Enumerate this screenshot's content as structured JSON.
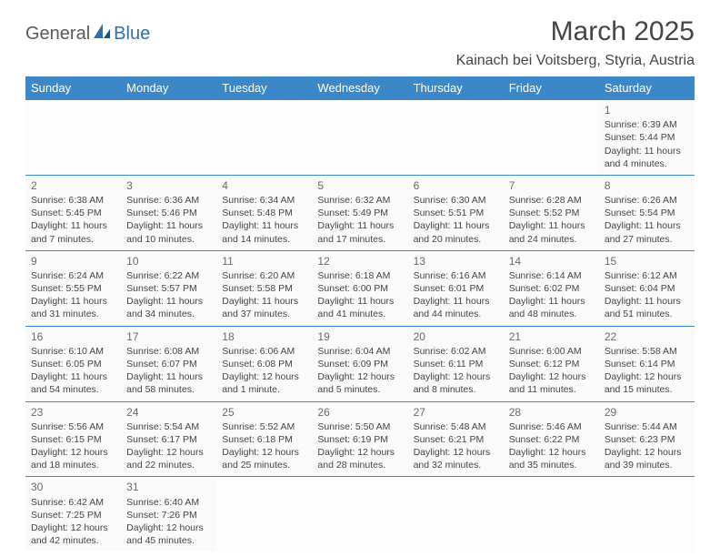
{
  "logo": {
    "text_general": "General",
    "text_blue": "Blue"
  },
  "title": "March 2025",
  "location": "Kainach bei Voitsberg, Styria, Austria",
  "colors": {
    "header_bg": "#3b87c8",
    "header_text": "#ffffff",
    "border": "#3b87c8",
    "body_text": "#454545",
    "cell_bg": "#fafafa"
  },
  "weekdays": [
    "Sunday",
    "Monday",
    "Tuesday",
    "Wednesday",
    "Thursday",
    "Friday",
    "Saturday"
  ],
  "weeks": [
    [
      null,
      null,
      null,
      null,
      null,
      null,
      {
        "n": "1",
        "sr": "Sunrise: 6:39 AM",
        "ss": "Sunset: 5:44 PM",
        "d1": "Daylight: 11 hours",
        "d2": "and 4 minutes."
      }
    ],
    [
      {
        "n": "2",
        "sr": "Sunrise: 6:38 AM",
        "ss": "Sunset: 5:45 PM",
        "d1": "Daylight: 11 hours",
        "d2": "and 7 minutes."
      },
      {
        "n": "3",
        "sr": "Sunrise: 6:36 AM",
        "ss": "Sunset: 5:46 PM",
        "d1": "Daylight: 11 hours",
        "d2": "and 10 minutes."
      },
      {
        "n": "4",
        "sr": "Sunrise: 6:34 AM",
        "ss": "Sunset: 5:48 PM",
        "d1": "Daylight: 11 hours",
        "d2": "and 14 minutes."
      },
      {
        "n": "5",
        "sr": "Sunrise: 6:32 AM",
        "ss": "Sunset: 5:49 PM",
        "d1": "Daylight: 11 hours",
        "d2": "and 17 minutes."
      },
      {
        "n": "6",
        "sr": "Sunrise: 6:30 AM",
        "ss": "Sunset: 5:51 PM",
        "d1": "Daylight: 11 hours",
        "d2": "and 20 minutes."
      },
      {
        "n": "7",
        "sr": "Sunrise: 6:28 AM",
        "ss": "Sunset: 5:52 PM",
        "d1": "Daylight: 11 hours",
        "d2": "and 24 minutes."
      },
      {
        "n": "8",
        "sr": "Sunrise: 6:26 AM",
        "ss": "Sunset: 5:54 PM",
        "d1": "Daylight: 11 hours",
        "d2": "and 27 minutes."
      }
    ],
    [
      {
        "n": "9",
        "sr": "Sunrise: 6:24 AM",
        "ss": "Sunset: 5:55 PM",
        "d1": "Daylight: 11 hours",
        "d2": "and 31 minutes."
      },
      {
        "n": "10",
        "sr": "Sunrise: 6:22 AM",
        "ss": "Sunset: 5:57 PM",
        "d1": "Daylight: 11 hours",
        "d2": "and 34 minutes."
      },
      {
        "n": "11",
        "sr": "Sunrise: 6:20 AM",
        "ss": "Sunset: 5:58 PM",
        "d1": "Daylight: 11 hours",
        "d2": "and 37 minutes."
      },
      {
        "n": "12",
        "sr": "Sunrise: 6:18 AM",
        "ss": "Sunset: 6:00 PM",
        "d1": "Daylight: 11 hours",
        "d2": "and 41 minutes."
      },
      {
        "n": "13",
        "sr": "Sunrise: 6:16 AM",
        "ss": "Sunset: 6:01 PM",
        "d1": "Daylight: 11 hours",
        "d2": "and 44 minutes."
      },
      {
        "n": "14",
        "sr": "Sunrise: 6:14 AM",
        "ss": "Sunset: 6:02 PM",
        "d1": "Daylight: 11 hours",
        "d2": "and 48 minutes."
      },
      {
        "n": "15",
        "sr": "Sunrise: 6:12 AM",
        "ss": "Sunset: 6:04 PM",
        "d1": "Daylight: 11 hours",
        "d2": "and 51 minutes."
      }
    ],
    [
      {
        "n": "16",
        "sr": "Sunrise: 6:10 AM",
        "ss": "Sunset: 6:05 PM",
        "d1": "Daylight: 11 hours",
        "d2": "and 54 minutes."
      },
      {
        "n": "17",
        "sr": "Sunrise: 6:08 AM",
        "ss": "Sunset: 6:07 PM",
        "d1": "Daylight: 11 hours",
        "d2": "and 58 minutes."
      },
      {
        "n": "18",
        "sr": "Sunrise: 6:06 AM",
        "ss": "Sunset: 6:08 PM",
        "d1": "Daylight: 12 hours",
        "d2": "and 1 minute."
      },
      {
        "n": "19",
        "sr": "Sunrise: 6:04 AM",
        "ss": "Sunset: 6:09 PM",
        "d1": "Daylight: 12 hours",
        "d2": "and 5 minutes."
      },
      {
        "n": "20",
        "sr": "Sunrise: 6:02 AM",
        "ss": "Sunset: 6:11 PM",
        "d1": "Daylight: 12 hours",
        "d2": "and 8 minutes."
      },
      {
        "n": "21",
        "sr": "Sunrise: 6:00 AM",
        "ss": "Sunset: 6:12 PM",
        "d1": "Daylight: 12 hours",
        "d2": "and 11 minutes."
      },
      {
        "n": "22",
        "sr": "Sunrise: 5:58 AM",
        "ss": "Sunset: 6:14 PM",
        "d1": "Daylight: 12 hours",
        "d2": "and 15 minutes."
      }
    ],
    [
      {
        "n": "23",
        "sr": "Sunrise: 5:56 AM",
        "ss": "Sunset: 6:15 PM",
        "d1": "Daylight: 12 hours",
        "d2": "and 18 minutes."
      },
      {
        "n": "24",
        "sr": "Sunrise: 5:54 AM",
        "ss": "Sunset: 6:17 PM",
        "d1": "Daylight: 12 hours",
        "d2": "and 22 minutes."
      },
      {
        "n": "25",
        "sr": "Sunrise: 5:52 AM",
        "ss": "Sunset: 6:18 PM",
        "d1": "Daylight: 12 hours",
        "d2": "and 25 minutes."
      },
      {
        "n": "26",
        "sr": "Sunrise: 5:50 AM",
        "ss": "Sunset: 6:19 PM",
        "d1": "Daylight: 12 hours",
        "d2": "and 28 minutes."
      },
      {
        "n": "27",
        "sr": "Sunrise: 5:48 AM",
        "ss": "Sunset: 6:21 PM",
        "d1": "Daylight: 12 hours",
        "d2": "and 32 minutes."
      },
      {
        "n": "28",
        "sr": "Sunrise: 5:46 AM",
        "ss": "Sunset: 6:22 PM",
        "d1": "Daylight: 12 hours",
        "d2": "and 35 minutes."
      },
      {
        "n": "29",
        "sr": "Sunrise: 5:44 AM",
        "ss": "Sunset: 6:23 PM",
        "d1": "Daylight: 12 hours",
        "d2": "and 39 minutes."
      }
    ],
    [
      {
        "n": "30",
        "sr": "Sunrise: 6:42 AM",
        "ss": "Sunset: 7:25 PM",
        "d1": "Daylight: 12 hours",
        "d2": "and 42 minutes."
      },
      {
        "n": "31",
        "sr": "Sunrise: 6:40 AM",
        "ss": "Sunset: 7:26 PM",
        "d1": "Daylight: 12 hours",
        "d2": "and 45 minutes."
      },
      null,
      null,
      null,
      null,
      null
    ]
  ]
}
